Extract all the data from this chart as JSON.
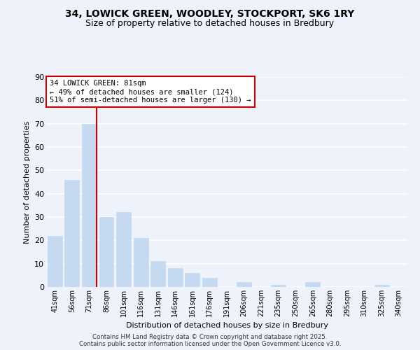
{
  "title_line1": "34, LOWICK GREEN, WOODLEY, STOCKPORT, SK6 1RY",
  "title_line2": "Size of property relative to detached houses in Bredbury",
  "xlabel": "Distribution of detached houses by size in Bredbury",
  "ylabel": "Number of detached properties",
  "categories": [
    "41sqm",
    "56sqm",
    "71sqm",
    "86sqm",
    "101sqm",
    "116sqm",
    "131sqm",
    "146sqm",
    "161sqm",
    "176sqm",
    "191sqm",
    "206sqm",
    "221sqm",
    "235sqm",
    "250sqm",
    "265sqm",
    "280sqm",
    "295sqm",
    "310sqm",
    "325sqm",
    "340sqm"
  ],
  "values": [
    22,
    46,
    70,
    30,
    32,
    21,
    11,
    8,
    6,
    4,
    0,
    2,
    0,
    1,
    0,
    2,
    0,
    0,
    0,
    1,
    0
  ],
  "bar_color": "#c5d9f0",
  "bar_edge_color": "#c5d9f0",
  "vline_color": "#cc0000",
  "ylim": [
    0,
    90
  ],
  "yticks": [
    0,
    10,
    20,
    30,
    40,
    50,
    60,
    70,
    80,
    90
  ],
  "annotation_title": "34 LOWICK GREEN: 81sqm",
  "annotation_line2": "← 49% of detached houses are smaller (124)",
  "annotation_line3": "51% of semi-detached houses are larger (130) →",
  "annotation_box_color": "#ffffff",
  "annotation_box_edge": "#cc0000",
  "background_color": "#eef2fb",
  "grid_color": "#ffffff",
  "footer_line1": "Contains HM Land Registry data © Crown copyright and database right 2025.",
  "footer_line2": "Contains public sector information licensed under the Open Government Licence v3.0."
}
